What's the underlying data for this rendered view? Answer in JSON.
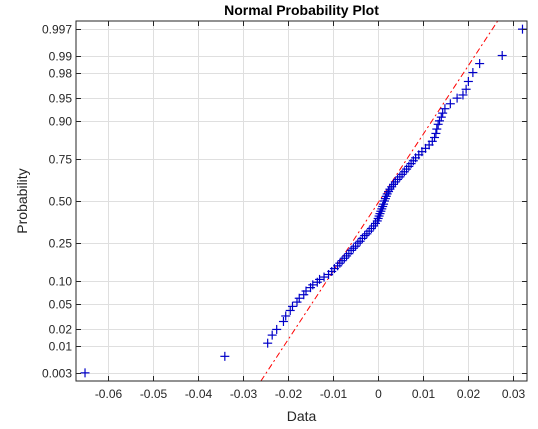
{
  "chart_data": {
    "type": "scatter",
    "title": "Normal Probability Plot",
    "xlabel": "Data",
    "ylabel": "Probability",
    "xlim": [
      -0.067,
      0.033
    ],
    "ylim": [
      0.002,
      0.998
    ],
    "yscale": "normal-probability",
    "grid": true,
    "marker": "+",
    "marker_color": "#0000c8",
    "refline_color": "#ff0000",
    "x_ticks": [
      {
        "v": -0.06,
        "label": "-0.06"
      },
      {
        "v": -0.05,
        "label": "-0.05"
      },
      {
        "v": -0.04,
        "label": "-0.04"
      },
      {
        "v": -0.03,
        "label": "-0.03"
      },
      {
        "v": -0.02,
        "label": "-0.02"
      },
      {
        "v": -0.01,
        "label": "-0.01"
      },
      {
        "v": 0,
        "label": "0"
      },
      {
        "v": 0.01,
        "label": "0.01"
      },
      {
        "v": 0.02,
        "label": "0.02"
      },
      {
        "v": 0.03,
        "label": "0.03"
      }
    ],
    "y_ticks": [
      {
        "p": 0.003,
        "label": "0.003"
      },
      {
        "p": 0.01,
        "label": "0.01"
      },
      {
        "p": 0.02,
        "label": "0.02"
      },
      {
        "p": 0.05,
        "label": "0.05"
      },
      {
        "p": 0.1,
        "label": "0.10"
      },
      {
        "p": 0.25,
        "label": "0.25"
      },
      {
        "p": 0.5,
        "label": "0.50"
      },
      {
        "p": 0.75,
        "label": "0.75"
      },
      {
        "p": 0.9,
        "label": "0.90"
      },
      {
        "p": 0.95,
        "label": "0.95"
      },
      {
        "p": 0.98,
        "label": "0.98"
      },
      {
        "p": 0.99,
        "label": "0.99"
      },
      {
        "p": 0.997,
        "label": "0.997"
      }
    ],
    "reference_line": {
      "x": [
        -0.026,
        0.0265
      ],
      "p": [
        0.002,
        0.998
      ]
    },
    "points": [
      {
        "x": -0.065,
        "p": 0.003
      },
      {
        "x": -0.034,
        "p": 0.0065
      },
      {
        "x": -0.0245,
        "p": 0.0115
      },
      {
        "x": -0.0235,
        "p": 0.016
      },
      {
        "x": -0.0225,
        "p": 0.02
      },
      {
        "x": -0.021,
        "p": 0.027
      },
      {
        "x": -0.0205,
        "p": 0.033
      },
      {
        "x": -0.0195,
        "p": 0.04
      },
      {
        "x": -0.019,
        "p": 0.046
      },
      {
        "x": -0.018,
        "p": 0.053
      },
      {
        "x": -0.0175,
        "p": 0.06
      },
      {
        "x": -0.0165,
        "p": 0.067
      },
      {
        "x": -0.016,
        "p": 0.075
      },
      {
        "x": -0.015,
        "p": 0.083
      },
      {
        "x": -0.0145,
        "p": 0.09
      },
      {
        "x": -0.0135,
        "p": 0.097
      },
      {
        "x": -0.013,
        "p": 0.105
      },
      {
        "x": -0.012,
        "p": 0.112
      },
      {
        "x": -0.011,
        "p": 0.12
      },
      {
        "x": -0.0103,
        "p": 0.13
      },
      {
        "x": -0.0097,
        "p": 0.14
      },
      {
        "x": -0.009,
        "p": 0.15
      },
      {
        "x": -0.0085,
        "p": 0.16
      },
      {
        "x": -0.008,
        "p": 0.17
      },
      {
        "x": -0.0075,
        "p": 0.18
      },
      {
        "x": -0.007,
        "p": 0.19
      },
      {
        "x": -0.0065,
        "p": 0.2
      },
      {
        "x": -0.006,
        "p": 0.215
      },
      {
        "x": -0.0055,
        "p": 0.225
      },
      {
        "x": -0.005,
        "p": 0.235
      },
      {
        "x": -0.0045,
        "p": 0.25
      },
      {
        "x": -0.004,
        "p": 0.26
      },
      {
        "x": -0.0035,
        "p": 0.275
      },
      {
        "x": -0.003,
        "p": 0.29
      },
      {
        "x": -0.0025,
        "p": 0.3
      },
      {
        "x": -0.002,
        "p": 0.315
      },
      {
        "x": -0.0015,
        "p": 0.33
      },
      {
        "x": -0.001,
        "p": 0.345
      },
      {
        "x": -0.0006,
        "p": 0.36
      },
      {
        "x": -0.0002,
        "p": 0.375
      },
      {
        "x": 0.0,
        "p": 0.39
      },
      {
        "x": 0.0002,
        "p": 0.405
      },
      {
        "x": 0.0004,
        "p": 0.42
      },
      {
        "x": 0.0006,
        "p": 0.435
      },
      {
        "x": 0.0008,
        "p": 0.45
      },
      {
        "x": 0.001,
        "p": 0.465
      },
      {
        "x": 0.0012,
        "p": 0.48
      },
      {
        "x": 0.0014,
        "p": 0.5
      },
      {
        "x": 0.0016,
        "p": 0.515
      },
      {
        "x": 0.0018,
        "p": 0.53
      },
      {
        "x": 0.002,
        "p": 0.545
      },
      {
        "x": 0.0023,
        "p": 0.56
      },
      {
        "x": 0.0026,
        "p": 0.575
      },
      {
        "x": 0.003,
        "p": 0.59
      },
      {
        "x": 0.0034,
        "p": 0.605
      },
      {
        "x": 0.0038,
        "p": 0.62
      },
      {
        "x": 0.0043,
        "p": 0.635
      },
      {
        "x": 0.0048,
        "p": 0.65
      },
      {
        "x": 0.0053,
        "p": 0.665
      },
      {
        "x": 0.0058,
        "p": 0.68
      },
      {
        "x": 0.0063,
        "p": 0.695
      },
      {
        "x": 0.0068,
        "p": 0.71
      },
      {
        "x": 0.0073,
        "p": 0.725
      },
      {
        "x": 0.0078,
        "p": 0.74
      },
      {
        "x": 0.0083,
        "p": 0.755
      },
      {
        "x": 0.009,
        "p": 0.77
      },
      {
        "x": 0.0097,
        "p": 0.785
      },
      {
        "x": 0.0105,
        "p": 0.8
      },
      {
        "x": 0.0113,
        "p": 0.815
      },
      {
        "x": 0.012,
        "p": 0.83
      },
      {
        "x": 0.0125,
        "p": 0.845
      },
      {
        "x": 0.0128,
        "p": 0.86
      },
      {
        "x": 0.013,
        "p": 0.875
      },
      {
        "x": 0.0133,
        "p": 0.89
      },
      {
        "x": 0.0136,
        "p": 0.9
      },
      {
        "x": 0.014,
        "p": 0.91
      },
      {
        "x": 0.0143,
        "p": 0.92
      },
      {
        "x": 0.0148,
        "p": 0.93
      },
      {
        "x": 0.016,
        "p": 0.94
      },
      {
        "x": 0.0175,
        "p": 0.95
      },
      {
        "x": 0.0188,
        "p": 0.955
      },
      {
        "x": 0.0195,
        "p": 0.963
      },
      {
        "x": 0.02,
        "p": 0.972
      },
      {
        "x": 0.021,
        "p": 0.98
      },
      {
        "x": 0.0225,
        "p": 0.986
      },
      {
        "x": 0.0275,
        "p": 0.99
      },
      {
        "x": 0.032,
        "p": 0.997
      }
    ]
  }
}
